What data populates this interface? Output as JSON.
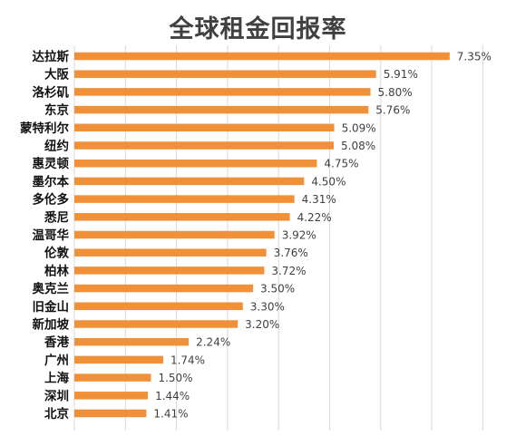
{
  "chart_data": {
    "type": "bar",
    "orientation": "horizontal",
    "title": "全球租金回报率",
    "categories": [
      "达拉斯",
      "大阪",
      "洛杉矶",
      "东京",
      "蒙特利尔",
      "纽约",
      "惠灵顿",
      "墨尔本",
      "多伦多",
      "悉尼",
      "温哥华",
      "伦敦",
      "柏林",
      "奥克兰",
      "旧金山",
      "新加坡",
      "香港",
      "广州",
      "上海",
      "深圳",
      "北京"
    ],
    "values": [
      7.35,
      5.91,
      5.8,
      5.76,
      5.09,
      5.08,
      4.75,
      4.5,
      4.31,
      4.22,
      3.92,
      3.76,
      3.72,
      3.5,
      3.3,
      3.2,
      2.24,
      1.74,
      1.5,
      1.44,
      1.41
    ],
    "value_labels": [
      "7.35%",
      "5.91%",
      "5.80%",
      "5.76%",
      "5.09%",
      "5.08%",
      "4.75%",
      "4.50%",
      "4.31%",
      "4.22%",
      "3.92%",
      "3.76%",
      "3.72%",
      "3.50%",
      "3.30%",
      "3.20%",
      "2.24%",
      "1.74%",
      "1.50%",
      "1.44%",
      "1.41%"
    ],
    "xlim": [
      0,
      8
    ],
    "grid": true,
    "legend": "none",
    "bar_color": "#f0913a",
    "grid_color": "#d9d9d9"
  }
}
